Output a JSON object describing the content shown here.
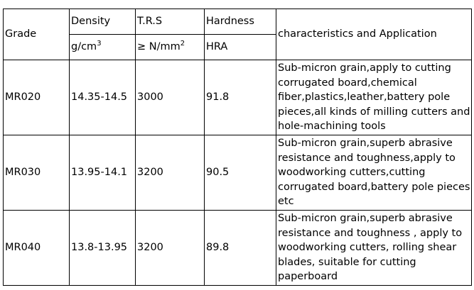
{
  "table": {
    "header": [
      {
        "label": "Grade"
      },
      {
        "label": "Density",
        "unit": {
          "base": "g/cm",
          "sup": "3"
        }
      },
      {
        "label": "T.R.S",
        "unit": {
          "base": "≥ N/mm",
          "sup": "2"
        }
      },
      {
        "label": "Hardness",
        "unit": {
          "base": "HRA"
        }
      },
      {
        "label": "characteristics and Application"
      }
    ],
    "rows": [
      [
        "MR020",
        "14.35-14.5",
        "3000",
        "91.8",
        "Sub-micron grain,apply to cutting corrugated board,chemical fiber,plastics,leather,battery pole pieces,all kinds of milling cutters and hole-machining tools"
      ],
      [
        "MR030",
        "13.95-14.1",
        "3200",
        "90.5",
        "Sub-micron grain,superb abrasive resistance and toughness,apply to woodworking cutters,cutting corrugated board,battery pole pieces etc"
      ],
      [
        "MR040",
        "13.8-13.95",
        "3200",
        "89.8",
        "Sub-micron grain,superb abrasive resistance and toughness , apply to woodworking cutters, rolling shear blades, suitable for cutting paperboard"
      ]
    ]
  }
}
